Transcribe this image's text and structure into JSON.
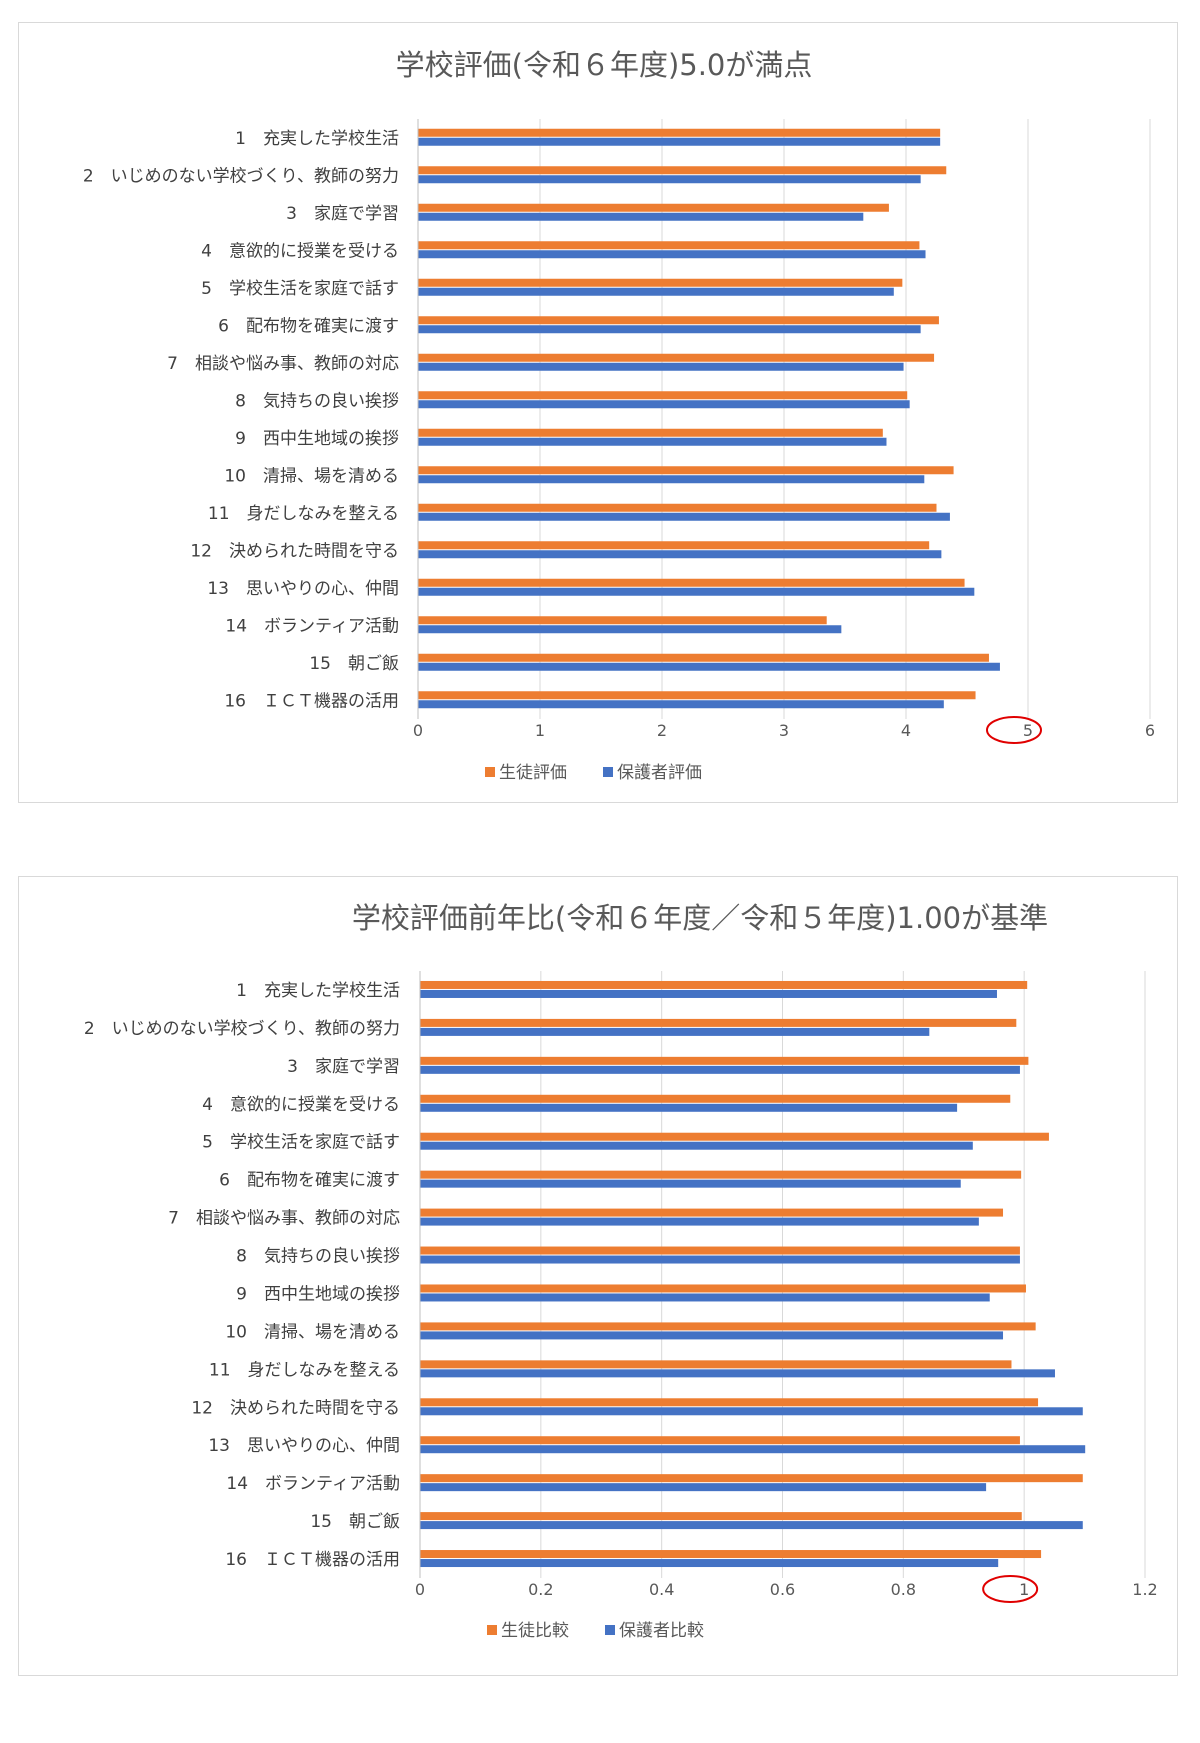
{
  "chart_data": [
    {
      "type": "bar",
      "orientation": "horizontal",
      "title": "学校評価(令和６年度)5.0が満点",
      "categories": [
        "1　充実した学校生活",
        "2　いじめのない学校づくり、教師の努力",
        "3　家庭で学習",
        "4　意欲的に授業を受ける",
        "5　学校生活を家庭で話す",
        "6　配布物を確実に渡す",
        "7　相談や悩み事、教師の対応",
        "8　気持ちの良い挨拶",
        "9　西中生地域の挨拶",
        "10　清掃、場を清める",
        "11　身だしなみを整える",
        "12　決められた時間を守る",
        "13　思いやりの心、仲間",
        "14　ボランティア活動",
        "15　朝ご飯",
        "16　ＩＣＴ機器の活用"
      ],
      "series": [
        {
          "name": "生徒評価",
          "color": "#ed7d31",
          "values": [
            4.28,
            4.33,
            3.86,
            4.11,
            3.97,
            4.27,
            4.23,
            4.01,
            3.81,
            4.39,
            4.25,
            4.19,
            4.48,
            3.35,
            4.68,
            4.57
          ]
        },
        {
          "name": "保護者評価",
          "color": "#4472c4",
          "values": [
            4.28,
            4.12,
            3.65,
            4.16,
            3.9,
            4.12,
            3.98,
            4.03,
            3.84,
            4.15,
            4.36,
            4.29,
            4.56,
            3.47,
            4.77,
            4.31
          ]
        }
      ],
      "xlim": [
        0,
        6
      ],
      "xticks": [
        0,
        1,
        2,
        3,
        4,
        5,
        6
      ],
      "xtick_labels": [
        "0",
        "1",
        "2",
        "3",
        "4",
        "5",
        "6"
      ],
      "highlight_tick": "5",
      "legend_position": "bottom",
      "grid": true
    },
    {
      "type": "bar",
      "orientation": "horizontal",
      "title": "学校評価前年比(令和６年度／令和５年度)1.00が基準",
      "categories": [
        "1　充実した学校生活",
        "2　いじめのない学校づくり、教師の努力",
        "3　家庭で学習",
        "4　意欲的に授業を受ける",
        "5　学校生活を家庭で話す",
        "6　配布物を確実に渡す",
        "7　相談や悩み事、教師の対応",
        "8　気持ちの良い挨拶",
        "9　西中生地域の挨拶",
        "10　清掃、場を清める",
        "11　身だしなみを整える",
        "12　決められた時間を守る",
        "13　思いやりの心、仲間",
        "14　ボランティア活動",
        "15　朝ご飯",
        "16　ＩＣＴ機器の活用"
      ],
      "series": [
        {
          "name": "生徒比較",
          "color": "#ed7d31",
          "values": [
            1.005,
            0.987,
            1.007,
            0.977,
            1.041,
            0.995,
            0.965,
            0.993,
            1.003,
            1.019,
            0.979,
            1.023,
            0.993,
            1.097,
            0.996,
            1.028
          ]
        },
        {
          "name": "保護者比較",
          "color": "#4472c4",
          "values": [
            0.955,
            0.843,
            0.993,
            0.889,
            0.915,
            0.895,
            0.925,
            0.993,
            0.943,
            0.965,
            1.051,
            1.097,
            1.101,
            0.937,
            1.097,
            0.957
          ]
        }
      ],
      "xlim": [
        0,
        1.2
      ],
      "xticks": [
        0,
        0.2,
        0.4,
        0.6,
        0.8,
        1,
        1.2
      ],
      "xtick_labels": [
        "0",
        "0.2",
        "0.4",
        "0.6",
        "0.8",
        "1",
        "1.2"
      ],
      "highlight_tick": "1",
      "legend_position": "bottom",
      "grid": true
    }
  ]
}
